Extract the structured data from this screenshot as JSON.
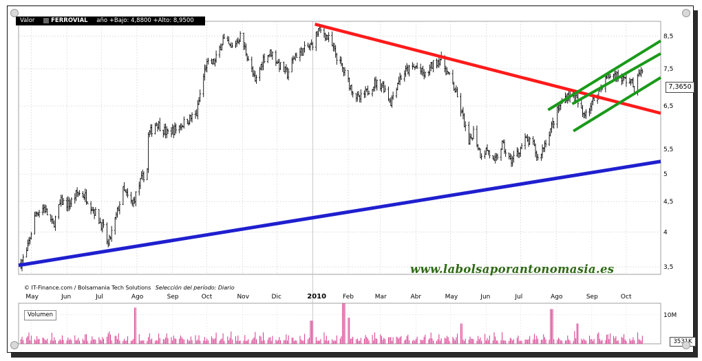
{
  "header": {
    "valor_label": "Valor",
    "ticker": "FERROVIAL",
    "range_text": "año +Bajo: 4,8800 +Alto: 8,9500"
  },
  "footer": {
    "credit": "© IT-Finance.com / Bolsamania Tech Solutions",
    "period": "Selección del período: Diario"
  },
  "watermark": "www.labolsaporantonomasia.es",
  "volume_label": "Volumen",
  "last_price_label": "7,3650",
  "last_volume_label": "3531K",
  "colors": {
    "price_bars": "#000000",
    "volume_bars": "#d6338a",
    "support_line": "#1f1fcf",
    "resistance_line": "#ff1a1a",
    "channel_lines": "#1a9a1a",
    "watermark": "#2f6a15"
  },
  "chart_data": [
    {
      "type": "ohlc",
      "series_name": "FERROVIAL",
      "y_scale": "log",
      "ylim": [
        3.4,
        9.0
      ],
      "yticks": [
        "3,5",
        "4",
        "4,5",
        "5",
        "5,5",
        "6,5",
        "7,5",
        "8,5"
      ],
      "x_month_labels": [
        "May",
        "Jun",
        "Jul",
        "Ago",
        "Sep",
        "Oct",
        "Nov",
        "Dic",
        "2010",
        "Feb",
        "Mar",
        "Abr",
        "May",
        "Jun",
        "Jul",
        "Ago",
        "Sep",
        "Oct"
      ],
      "x_start": "2009-04-20",
      "x_end": "2010-10-31",
      "close_keypoints": [
        [
          "2009-04-22",
          3.55
        ],
        [
          "2009-04-27",
          3.7
        ],
        [
          "2009-05-05",
          4.3
        ],
        [
          "2009-05-12",
          4.4
        ],
        [
          "2009-05-20",
          4.1
        ],
        [
          "2009-05-27",
          4.5
        ],
        [
          "2009-06-03",
          4.45
        ],
        [
          "2009-06-10",
          4.65
        ],
        [
          "2009-06-17",
          4.6
        ],
        [
          "2009-06-26",
          4.3
        ],
        [
          "2009-07-03",
          4.05
        ],
        [
          "2009-07-07",
          3.8
        ],
        [
          "2009-07-14",
          4.25
        ],
        [
          "2009-07-20",
          4.7
        ],
        [
          "2009-07-28",
          4.45
        ],
        [
          "2009-08-04",
          4.85
        ],
        [
          "2009-08-10",
          5.1
        ],
        [
          "2009-08-11",
          5.8
        ],
        [
          "2009-08-18",
          6.1
        ],
        [
          "2009-08-27",
          5.85
        ],
        [
          "2009-09-04",
          5.95
        ],
        [
          "2009-09-14",
          6.15
        ],
        [
          "2009-09-22",
          6.3
        ],
        [
          "2009-09-30",
          7.6
        ],
        [
          "2009-10-08",
          7.7
        ],
        [
          "2009-10-15",
          8.4
        ],
        [
          "2009-10-22",
          8.1
        ],
        [
          "2009-10-30",
          8.5
        ],
        [
          "2009-11-06",
          7.8
        ],
        [
          "2009-11-12",
          7.1
        ],
        [
          "2009-11-19",
          7.8
        ],
        [
          "2009-11-26",
          8.0
        ],
        [
          "2009-12-03",
          7.6
        ],
        [
          "2009-12-10",
          7.35
        ],
        [
          "2009-12-17",
          7.9
        ],
        [
          "2009-12-24",
          8.05
        ],
        [
          "2009-12-31",
          8.2
        ],
        [
          "2010-01-06",
          8.7
        ],
        [
          "2010-01-11",
          8.6
        ],
        [
          "2010-01-15",
          8.4
        ],
        [
          "2010-01-20",
          8.0
        ],
        [
          "2010-01-27",
          7.5
        ],
        [
          "2010-02-03",
          7.0
        ],
        [
          "2010-02-10",
          6.65
        ],
        [
          "2010-02-17",
          6.85
        ],
        [
          "2010-02-24",
          7.1
        ],
        [
          "2010-03-03",
          7.05
        ],
        [
          "2010-03-10",
          6.6
        ],
        [
          "2010-03-17",
          7.2
        ],
        [
          "2010-03-24",
          7.45
        ],
        [
          "2010-04-01",
          7.55
        ],
        [
          "2010-04-09",
          7.3
        ],
        [
          "2010-04-15",
          7.6
        ],
        [
          "2010-04-22",
          7.8
        ],
        [
          "2010-04-28",
          7.4
        ],
        [
          "2010-05-05",
          6.9
        ],
        [
          "2010-05-12",
          6.2
        ],
        [
          "2010-05-17",
          5.6
        ],
        [
          "2010-05-21",
          5.9
        ],
        [
          "2010-05-27",
          5.4
        ],
        [
          "2010-06-02",
          5.5
        ],
        [
          "2010-06-08",
          5.2
        ],
        [
          "2010-06-15",
          5.6
        ],
        [
          "2010-06-22",
          5.25
        ],
        [
          "2010-06-29",
          5.45
        ],
        [
          "2010-07-05",
          5.7
        ],
        [
          "2010-07-12",
          5.6
        ],
        [
          "2010-07-16",
          5.3
        ],
        [
          "2010-07-20",
          5.5
        ],
        [
          "2010-07-28",
          6.0
        ],
        [
          "2010-08-04",
          6.5
        ],
        [
          "2010-08-11",
          6.8
        ],
        [
          "2010-08-18",
          6.7
        ],
        [
          "2010-08-24",
          6.3
        ],
        [
          "2010-08-31",
          6.5
        ],
        [
          "2010-09-07",
          6.9
        ],
        [
          "2010-09-14",
          7.25
        ],
        [
          "2010-09-21",
          7.35
        ],
        [
          "2010-09-28",
          7.2
        ],
        [
          "2010-10-05",
          7.15
        ],
        [
          "2010-10-08",
          6.95
        ],
        [
          "2010-10-13",
          7.4
        ],
        [
          "2010-10-15",
          7.365
        ]
      ],
      "trendlines": [
        {
          "kind": "support",
          "start": [
            "2009-04-20",
            3.52
          ],
          "end": [
            "2010-10-31",
            5.25
          ]
        },
        {
          "kind": "resistance",
          "start": [
            "2010-01-03",
            8.9
          ],
          "end": [
            "2010-10-31",
            6.32
          ]
        },
        {
          "kind": "channel_upper",
          "start": [
            "2010-07-25",
            6.4
          ],
          "end": [
            "2010-10-31",
            8.35
          ]
        },
        {
          "kind": "channel_mid",
          "start": [
            "2010-08-15",
            6.55
          ],
          "end": [
            "2010-10-31",
            7.95
          ]
        },
        {
          "kind": "channel_lower",
          "start": [
            "2010-08-16",
            5.9
          ],
          "end": [
            "2010-10-31",
            7.25
          ]
        }
      ]
    },
    {
      "type": "bar",
      "series_name": "Volumen",
      "ylim": [
        0,
        14000000
      ],
      "yticks": [
        "10M"
      ],
      "spikes": [
        [
          "2009-07-31",
          12500000
        ],
        [
          "2009-12-31",
          8000000
        ],
        [
          "2010-01-28",
          14000000
        ],
        [
          "2010-02-01",
          9000000
        ],
        [
          "2010-05-10",
          7000000
        ],
        [
          "2010-07-28",
          12000000
        ],
        [
          "2010-08-20",
          7000000
        ]
      ],
      "typical_range": [
        1000000,
        4500000
      ]
    }
  ]
}
